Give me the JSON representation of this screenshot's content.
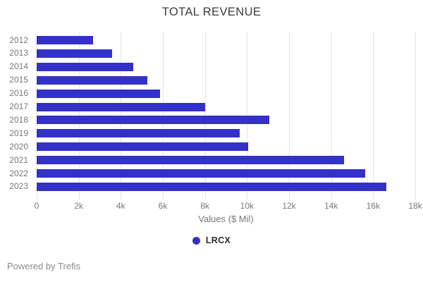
{
  "title": "TOTAL REVENUE",
  "chart_data": {
    "type": "bar",
    "orientation": "horizontal",
    "title": "TOTAL REVENUE",
    "categories": [
      "2012",
      "2013",
      "2014",
      "2015",
      "2016",
      "2017",
      "2018",
      "2019",
      "2020",
      "2021",
      "2022",
      "2023"
    ],
    "series": [
      {
        "name": "LRCX",
        "color": "#3431c9",
        "values": [
          2680,
          3590,
          4590,
          5260,
          5880,
          8000,
          11070,
          9660,
          10050,
          14610,
          15620,
          16630
        ]
      }
    ],
    "xlabel": "Values ($ Mil)",
    "ylabel": "",
    "xlim": [
      0,
      18000
    ],
    "xticks": [
      {
        "value": 0,
        "label": "0"
      },
      {
        "value": 2000,
        "label": "2k"
      },
      {
        "value": 4000,
        "label": "4k"
      },
      {
        "value": 6000,
        "label": "6k"
      },
      {
        "value": 8000,
        "label": "8k"
      },
      {
        "value": 10000,
        "label": "10k"
      },
      {
        "value": 12000,
        "label": "12k"
      },
      {
        "value": 14000,
        "label": "14k"
      },
      {
        "value": 16000,
        "label": "16k"
      },
      {
        "value": 18000,
        "label": "18k"
      }
    ],
    "grid": true,
    "legend_position": "bottom"
  },
  "legend": {
    "items": [
      {
        "label": "LRCX",
        "color": "#3431c9"
      }
    ]
  },
  "footer": {
    "text": "Powered by Trefis"
  },
  "colors": {
    "bar": "#3431c9",
    "gridline": "#e5e5e9",
    "title_text": "#3b3b3b",
    "axis_text": "#75787b",
    "legend_text": "#2b2b2b",
    "footer_text": "#8b8b8b"
  }
}
